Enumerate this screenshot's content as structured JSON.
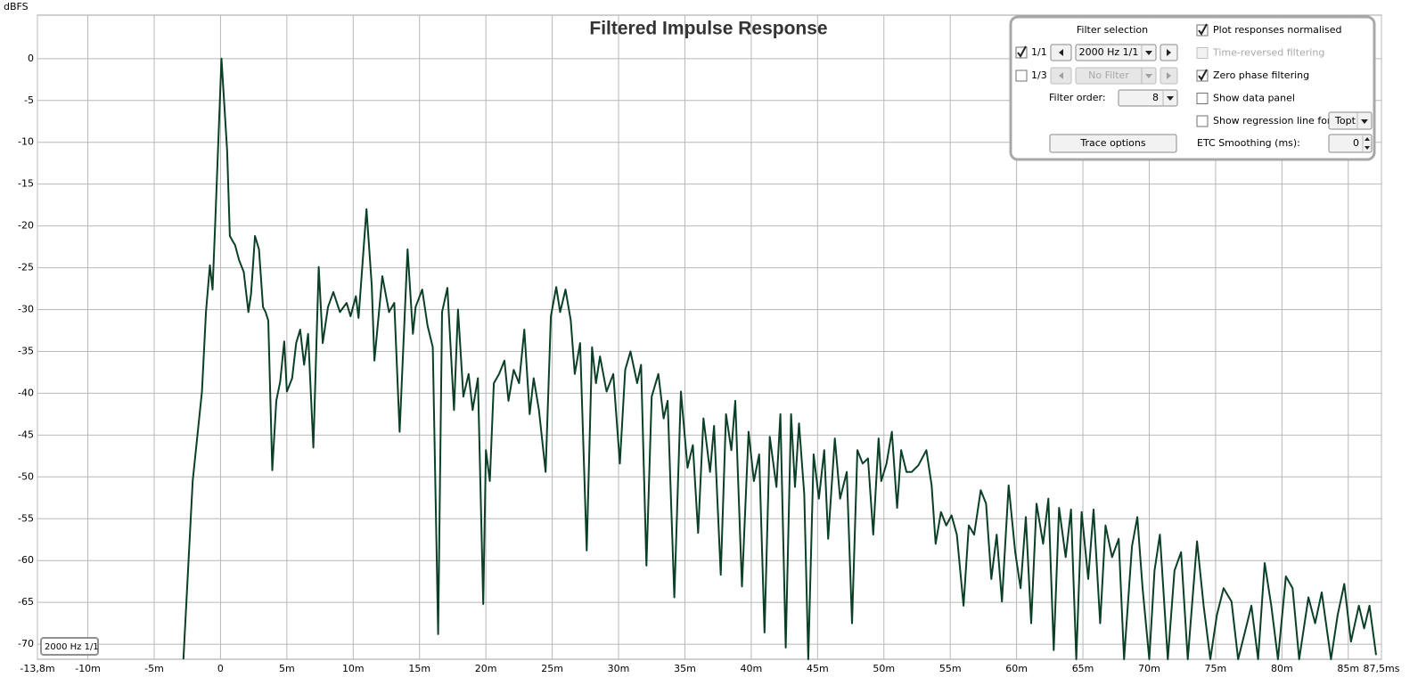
{
  "chart_data": {
    "type": "line",
    "title": "Filtered Impulse Response",
    "y_label": "dBFS",
    "xlim": [
      -13.8,
      87.5
    ],
    "ylim": [
      -71.8,
      5.2
    ],
    "xticks": [
      {
        "value": -13.8,
        "label": "-13,8m"
      },
      {
        "value": -10,
        "label": "-10m"
      },
      {
        "value": -5,
        "label": "-5m"
      },
      0,
      {
        "value": 5,
        "label": "5m"
      },
      {
        "value": 10,
        "label": "10m"
      },
      {
        "value": 15,
        "label": "15m"
      },
      {
        "value": 20,
        "label": "20m"
      },
      {
        "value": 25,
        "label": "25m"
      },
      {
        "value": 30,
        "label": "30m"
      },
      {
        "value": 35,
        "label": "35m"
      },
      {
        "value": 40,
        "label": "40m"
      },
      {
        "value": 45,
        "label": "45m"
      },
      {
        "value": 50,
        "label": "50m"
      },
      {
        "value": 55,
        "label": "55m"
      },
      {
        "value": 60,
        "label": "60m"
      },
      {
        "value": 65,
        "label": "65m"
      },
      {
        "value": 70,
        "label": "70m"
      },
      {
        "value": 75,
        "label": "75m"
      },
      {
        "value": 80,
        "label": "80m"
      },
      {
        "value": 85,
        "label": "85m"
      },
      {
        "value": 87.5,
        "label": "87,5ms"
      }
    ],
    "yticks": [
      0,
      -5,
      -10,
      -15,
      -20,
      -25,
      -30,
      -35,
      -40,
      -45,
      -50,
      -55,
      -60,
      -65,
      -70
    ],
    "grid": true,
    "legend": "bottom-left",
    "x": [
      -2.8,
      -2.1,
      -1.4,
      -1.1,
      -0.8,
      -0.6,
      -0.4,
      0.07,
      0.5,
      0.7,
      0.95,
      1.1,
      1.4,
      1.75,
      2.1,
      2.3,
      2.6,
      2.9,
      3.2,
      3.4,
      3.6,
      3.9,
      4.2,
      4.5,
      4.8,
      5.0,
      5.4,
      5.7,
      6.0,
      6.3,
      6.6,
      7.0,
      7.4,
      7.7,
      8.1,
      8.5,
      9.0,
      9.5,
      9.8,
      10.2,
      10.4,
      11.0,
      11.4,
      11.6,
      12.2,
      12.7,
      13.1,
      13.5,
      14.1,
      14.5,
      14.7,
      15.2,
      15.6,
      16.0,
      16.4,
      16.7,
      17.1,
      17.6,
      17.9,
      18.3,
      18.7,
      19.0,
      19.4,
      19.8,
      20.0,
      20.3,
      20.6,
      21.0,
      21.4,
      21.7,
      22.1,
      22.5,
      22.9,
      23.3,
      23.6,
      24.0,
      24.5,
      24.9,
      25.3,
      25.6,
      26.0,
      26.4,
      26.7,
      27.1,
      27.6,
      28.0,
      28.3,
      28.6,
      29.1,
      29.6,
      30.1,
      30.5,
      30.9,
      31.4,
      31.7,
      32.1,
      32.5,
      33.0,
      33.4,
      33.7,
      34.2,
      34.7,
      35.2,
      35.6,
      36.0,
      36.4,
      36.9,
      37.2,
      37.7,
      38.1,
      38.5,
      38.8,
      39.3,
      39.8,
      40.2,
      40.6,
      41.0,
      41.4,
      41.9,
      42.2,
      42.6,
      43.0,
      43.3,
      43.6,
      44.0,
      44.3,
      44.7,
      45.1,
      45.5,
      45.8,
      46.3,
      46.7,
      47.2,
      47.6,
      48.0,
      48.4,
      48.8,
      49.2,
      49.6,
      49.8,
      50.2,
      50.6,
      51.0,
      51.3,
      51.7,
      52.1,
      52.6,
      53.2,
      53.6,
      53.9,
      54.3,
      54.7,
      55.1,
      55.5,
      56.0,
      56.4,
      56.8,
      57.3,
      57.7,
      58.1,
      58.5,
      58.9,
      59.4,
      59.9,
      60.3,
      60.7,
      61.1,
      61.5,
      62.0,
      62.4,
      62.8,
      63.2,
      63.7,
      64.1,
      64.5,
      64.9,
      65.4,
      65.8,
      66.3,
      66.7,
      67.2,
      67.7,
      68.1,
      68.7,
      69.1,
      69.5,
      70.0,
      70.4,
      70.8,
      71.4,
      71.9,
      72.4,
      72.9,
      73.6,
      74.1,
      74.6,
      75.1,
      75.6,
      76.2,
      76.7,
      77.2,
      77.7,
      78.2,
      78.7,
      79.2,
      79.7,
      80.3,
      80.8,
      81.3,
      82.0,
      82.5,
      83.0,
      83.7,
      84.2,
      84.7,
      85.2,
      85.8,
      86.2,
      86.6,
      87.1
    ],
    "series": [
      {
        "name": "2000 Hz 1/1",
        "color": "#0b4027",
        "values": [
          -71.8,
          -50.5,
          -39.8,
          -30.3,
          -24.7,
          -27.6,
          -19.6,
          0,
          -11.1,
          -21.2,
          -21.9,
          -22.3,
          -24.1,
          -25.5,
          -30.3,
          -28.1,
          -21.2,
          -22.8,
          -29.7,
          -30.3,
          -31.3,
          -49.2,
          -40.9,
          -38.6,
          -33.8,
          -39.8,
          -38.2,
          -34,
          -32.4,
          -36.6,
          -32.9,
          -46.5,
          -24.9,
          -34,
          -29.7,
          -27.9,
          -30.3,
          -29.2,
          -30.8,
          -28.4,
          -31,
          -18,
          -27.1,
          -36.1,
          -26,
          -30.3,
          -29.2,
          -44.6,
          -22.8,
          -32.9,
          -29.7,
          -27.6,
          -31.9,
          -34.5,
          -68.8,
          -30.3,
          -27.4,
          -42,
          -30,
          -40.4,
          -37.7,
          -42,
          -38.2,
          -65.2,
          -46.8,
          -50.5,
          -38.8,
          -37.7,
          -36.1,
          -40.9,
          -37.2,
          -38.8,
          -32.4,
          -42.5,
          -38.2,
          -42,
          -49.4,
          -30.8,
          -27.3,
          -30.3,
          -27.6,
          -31.3,
          -37.7,
          -34,
          -58.8,
          -34.5,
          -38.8,
          -35.6,
          -39.8,
          -37.7,
          -48.4,
          -37.2,
          -35,
          -38.8,
          -36.6,
          -60.6,
          -40.4,
          -37.7,
          -43,
          -40.9,
          -64.4,
          -39.8,
          -48.9,
          -46.2,
          -56.7,
          -43,
          -49.4,
          -43.9,
          -61.7,
          -42.5,
          -46.8,
          -40.9,
          -63.1,
          -44.6,
          -50.5,
          -47.3,
          -68.6,
          -45.2,
          -51.2,
          -42.5,
          -70.4,
          -42.5,
          -51.2,
          -43.6,
          -52.1,
          -71.8,
          -47.3,
          -52.6,
          -46.8,
          -57.4,
          -45.4,
          -52.6,
          -49.4,
          -67.5,
          -46.8,
          -48.4,
          -47.8,
          -56.9,
          -45.4,
          -50.5,
          -48.4,
          -44.6,
          -53.7,
          -46.8,
          -49.4,
          -49.4,
          -48.6,
          -46.8,
          -51,
          -58,
          -54.2,
          -55.8,
          -54.6,
          -56.9,
          -65.4,
          -55.8,
          -56.9,
          -51.6,
          -53.2,
          -62.2,
          -56.9,
          -64.9,
          -51,
          -59,
          -63.3,
          -54.8,
          -67.5,
          -53.2,
          -58,
          -52.6,
          -70.7,
          -53.7,
          -59.6,
          -53.9,
          -71.8,
          -54.2,
          -62.2,
          -53.9,
          -67.5,
          -55.8,
          -59.6,
          -57.4,
          -71.8,
          -58.3,
          -54.8,
          -63.3,
          -71.8,
          -61.2,
          -56.9,
          -71.8,
          -61.2,
          -59,
          -71.8,
          -57.7,
          -65.4,
          -71.8,
          -66.5,
          -63.3,
          -64.9,
          -71.8,
          -68.6,
          -65.4,
          -71.8,
          -60.3,
          -65.4,
          -71.8,
          -61.9,
          -63.3,
          -71.8,
          -64.4,
          -67.5,
          -63.8,
          -71.8,
          -66.5,
          -62.8,
          -69.7,
          -65.4,
          -68.1,
          -65.4,
          -71.3
        ]
      }
    ]
  },
  "controls": {
    "filter_selection": "Filter selection",
    "rows": [
      {
        "checkbox": "1/1",
        "checked": true,
        "select": "2000 Hz 1/1",
        "enabled": true
      },
      {
        "checkbox": "1/3",
        "checked": false,
        "select": "No Filter",
        "enabled": false
      }
    ],
    "filter_order_label": "Filter order:",
    "filter_order": 8,
    "trace_options": "Trace options",
    "options": [
      {
        "label": "Plot responses normalised",
        "checked": true,
        "enabled": true
      },
      {
        "label": "Time-reversed filtering",
        "checked": false,
        "enabled": false
      },
      {
        "label": "Zero phase filtering",
        "checked": true,
        "enabled": true
      },
      {
        "label": "Show data panel",
        "checked": false,
        "enabled": true
      },
      {
        "label": "Show regression line for:",
        "checked": false,
        "enabled": true
      }
    ],
    "regression_select": "Topt",
    "etc_smoothing_label": "ETC Smoothing (ms):",
    "etc_smoothing": 0
  }
}
